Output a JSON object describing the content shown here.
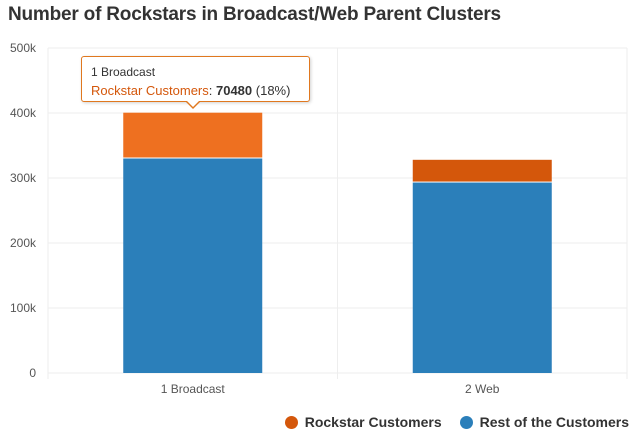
{
  "title": "Number of Rockstars in Broadcast/Web Parent Clusters",
  "colors": {
    "rockstar": "#d4570b",
    "rockstar_highlight": "#ee7020",
    "rest": "#2b7fba",
    "grid": "#eeeeee",
    "tooltip_border": "#e0781f"
  },
  "tooltip": {
    "category": "1 Broadcast",
    "series_name": "Rockstar Customers",
    "value": "70480",
    "percent": "(18%)"
  },
  "legend": [
    {
      "name": "Rockstar Customers",
      "color": "#d4570b"
    },
    {
      "name": "Rest of the Customers",
      "color": "#2b7fba"
    }
  ],
  "chart_data": {
    "type": "bar",
    "stacked": true,
    "title": "Number of Rockstars in Broadcast/Web Parent Clusters",
    "categories": [
      "1 Broadcast",
      "2 Web"
    ],
    "series": [
      {
        "name": "Rest of the Customers",
        "values": [
          330000,
          293000
        ]
      },
      {
        "name": "Rockstar Customers",
        "values": [
          70480,
          35000
        ]
      }
    ],
    "yticks": [
      "0",
      "100k",
      "200k",
      "300k",
      "400k",
      "500k"
    ],
    "ylim": [
      0,
      500000
    ],
    "grid": true,
    "legend_position": "bottom-right"
  }
}
